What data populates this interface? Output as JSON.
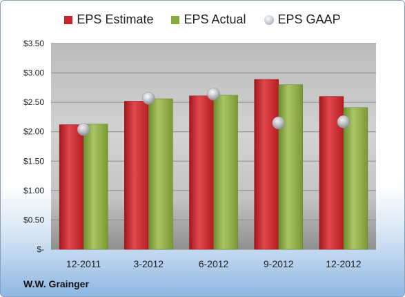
{
  "chart_data": {
    "type": "bar",
    "categories": [
      "12-2011",
      "3-2012",
      "6-2012",
      "9-2012",
      "12-2012"
    ],
    "series": [
      {
        "name": "EPS Estimate",
        "kind": "bar",
        "color": "#c8262c",
        "values": [
          2.12,
          2.52,
          2.61,
          2.89,
          2.6
        ]
      },
      {
        "name": "EPS Actual",
        "kind": "bar",
        "color": "#86a93c",
        "values": [
          2.13,
          2.56,
          2.62,
          2.8,
          2.41
        ]
      },
      {
        "name": "EPS GAAP",
        "kind": "scatter",
        "color": "#b8bdc6",
        "values": [
          2.04,
          2.57,
          2.64,
          2.15,
          2.17
        ]
      }
    ],
    "ylim": [
      0,
      3.5
    ],
    "yticks": [
      0,
      0.5,
      1.0,
      1.5,
      2.0,
      2.5,
      3.0,
      3.5
    ],
    "ytick_labels": [
      "$-",
      "$0.50",
      "$1.00",
      "$1.50",
      "$2.00",
      "$2.50",
      "$3.00",
      "$3.50"
    ],
    "grid": true,
    "legend_position": "top"
  },
  "legend": {
    "estimate": "EPS Estimate",
    "actual": "EPS Actual",
    "gaap": "EPS GAAP"
  },
  "company": "W.W. Grainger"
}
